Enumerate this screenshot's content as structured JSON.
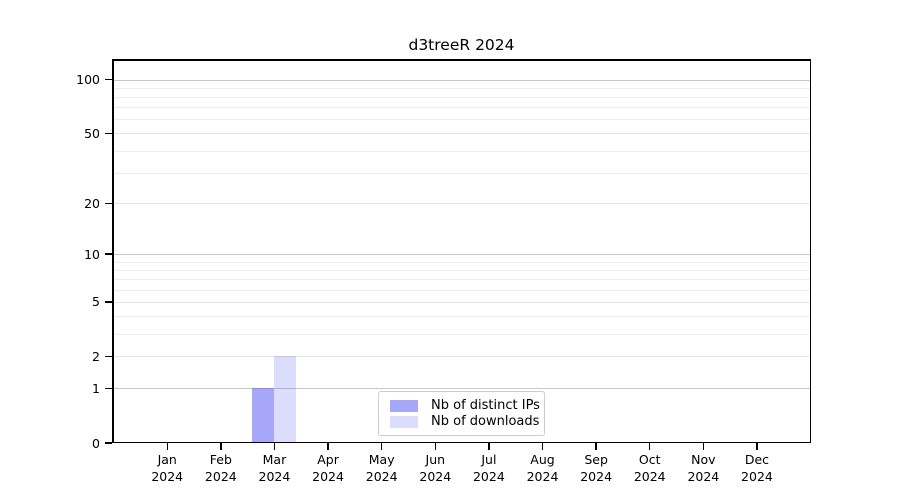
{
  "page": {
    "background": "#ffffff"
  },
  "chart_data": {
    "type": "bar",
    "title": "d3treeR 2024",
    "year": "2024",
    "categories": [
      "Jan",
      "Feb",
      "Mar",
      "Apr",
      "May",
      "Jun",
      "Jul",
      "Aug",
      "Sep",
      "Oct",
      "Nov",
      "Dec"
    ],
    "series": [
      {
        "name": "Nb of distinct IPs",
        "color_hex": "#aaaafa",
        "fill": "rgba(80,80,245,0.5)",
        "values": [
          0,
          0,
          1,
          0,
          0,
          0,
          0,
          0,
          0,
          0,
          0,
          0
        ]
      },
      {
        "name": "Nb of downloads",
        "color_hex": "#d8d8fa",
        "fill": "rgba(80,80,245,0.2)",
        "values": [
          0,
          0,
          2,
          0,
          0,
          0,
          0,
          0,
          0,
          0,
          0,
          0
        ]
      }
    ],
    "xlabel": "",
    "ylabel": "",
    "y_scale": "log1p",
    "ylim": [
      0,
      113
    ],
    "y_ticks": [
      0,
      1,
      2,
      5,
      10,
      20,
      50,
      100
    ],
    "y_decade_ticks": [
      1,
      10,
      100
    ],
    "y_minor_gridlines": [
      3,
      4,
      6,
      7,
      8,
      9,
      30,
      40,
      60,
      70,
      80,
      90
    ],
    "grid": true,
    "legend_position": "inside-bottom-center",
    "axis_color": "#000000",
    "gridline_decade_color": "#c7c7c7",
    "gridline_labeled_color": "#e3e3e3",
    "gridline_minor_color": "#ededed",
    "legend_border_color": "#cccccc"
  }
}
